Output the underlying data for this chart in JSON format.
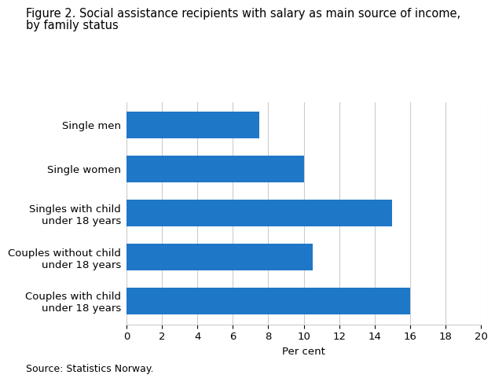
{
  "categories": [
    "Couples with child\nunder 18 years",
    "Couples without child\nunder 18 years",
    "Singles with child\nunder 18 years",
    "Single women",
    "Single men"
  ],
  "values": [
    16.0,
    10.5,
    15.0,
    10.0,
    7.5
  ],
  "bar_color": "#1F77C8",
  "title_line1": "Figure 2. Social assistance recipients with salary as main source of income,",
  "title_line2": "by family status",
  "xlabel": "Per cent",
  "xlim": [
    0,
    20
  ],
  "xticks": [
    0,
    2,
    4,
    6,
    8,
    10,
    12,
    14,
    16,
    18,
    20
  ],
  "source_text": "Source: Statistics Norway.",
  "background_color": "#ffffff",
  "grid_color": "#cccccc",
  "title_fontsize": 10.5,
  "tick_fontsize": 9.5,
  "xlabel_fontsize": 9.5,
  "source_fontsize": 9,
  "bar_height": 0.6
}
